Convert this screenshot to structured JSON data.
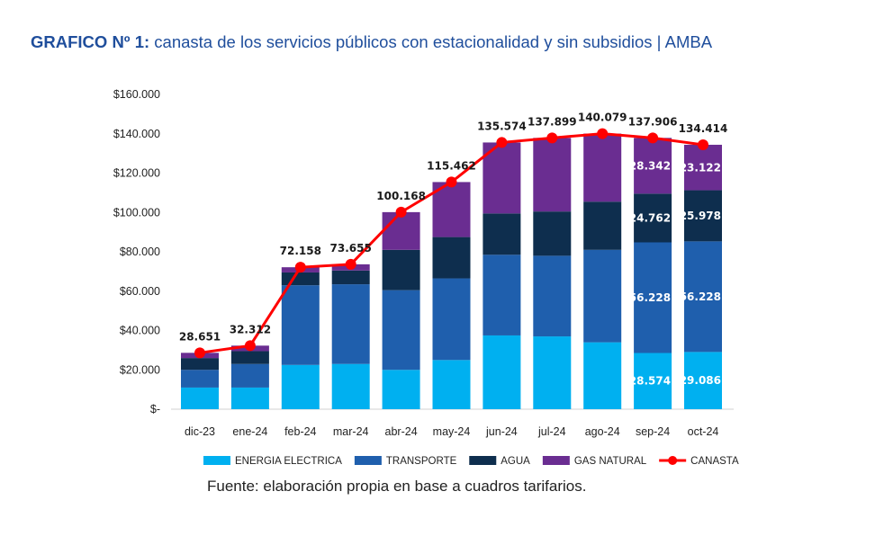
{
  "title": {
    "prefix": "GRAFICO Nº 1:",
    "text": " canasta de los servicios públicos con estacionalidad y sin subsidios | AMBA"
  },
  "source": "Fuente: elaboración propia en base a cuadros tarifarios.",
  "colors": {
    "energia": "#00b0f0",
    "transporte": "#1f5fad",
    "agua": "#0e2e4e",
    "gas": "#6a2d91",
    "canasta": "#ff0000"
  },
  "chart_data": {
    "type": "bar",
    "stacked": true,
    "categories": [
      "dic-23",
      "ene-24",
      "feb-24",
      "mar-24",
      "abr-24",
      "may-24",
      "jun-24",
      "jul-24",
      "ago-24",
      "sep-24",
      "oct-24"
    ],
    "y_ticks": [
      "$-",
      "$20.000",
      "$40.000",
      "$60.000",
      "$80.000",
      "$100.000",
      "$120.000",
      "$140.000",
      "$160.000"
    ],
    "ylim": [
      0,
      160000
    ],
    "series": [
      {
        "name": "ENERGIA ELECTRICA",
        "key": "energia",
        "values": [
          11000,
          11000,
          22500,
          23000,
          20000,
          25000,
          37500,
          37000,
          34000,
          28574,
          29086
        ],
        "labels": [
          null,
          null,
          null,
          null,
          null,
          null,
          null,
          null,
          null,
          "28.574",
          "29.086"
        ]
      },
      {
        "name": "TRANSPORTE",
        "key": "transporte",
        "values": [
          9000,
          12000,
          40500,
          40500,
          40500,
          41500,
          41000,
          41000,
          47000,
          56228,
          56228
        ],
        "labels": [
          null,
          null,
          null,
          null,
          null,
          null,
          null,
          null,
          null,
          "56.228",
          "56.228"
        ]
      },
      {
        "name": "AGUA",
        "key": "agua",
        "values": [
          6000,
          6500,
          6500,
          7000,
          20500,
          21000,
          21000,
          22500,
          24500,
          24762,
          25978
        ],
        "labels": [
          null,
          null,
          null,
          null,
          null,
          null,
          null,
          null,
          null,
          "24.762",
          "25.978"
        ]
      },
      {
        "name": "GAS NATURAL",
        "key": "gas",
        "values": [
          2651,
          2812,
          2658,
          3155,
          19168,
          27962,
          36074,
          37399,
          34579,
          28342,
          23122
        ],
        "labels": [
          null,
          null,
          null,
          null,
          null,
          null,
          null,
          null,
          null,
          "28.342",
          "23.122"
        ]
      }
    ],
    "line": {
      "name": "CANASTA",
      "key": "canasta",
      "values": [
        28651,
        32312,
        72158,
        73655,
        100168,
        115462,
        135574,
        137899,
        140079,
        137906,
        134414
      ],
      "labels": [
        "28.651",
        "32.312",
        "72.158",
        "73.655",
        "100.168",
        "115.462",
        "135.574",
        "137.899",
        "140.079",
        "137.906",
        "134.414"
      ]
    },
    "legend_position": "bottom"
  }
}
